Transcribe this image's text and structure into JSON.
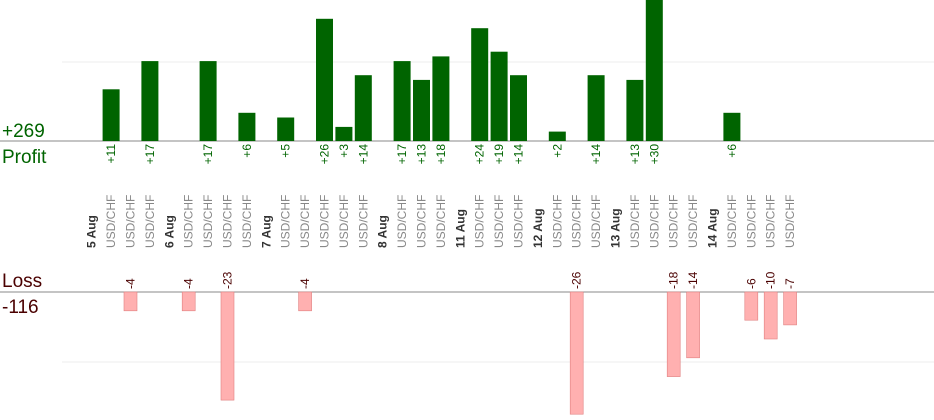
{
  "chart_data": {
    "type": "bar",
    "profit_total": "+269",
    "profit_label": "Profit",
    "loss_label": "Loss",
    "loss_total": "-116",
    "colors": {
      "profit": "#006400",
      "loss": "#ffb0b0",
      "loss_text": "#4a0000",
      "profit_text": "#006400"
    },
    "groups": [
      {
        "date": "5 Aug",
        "trades": [
          {
            "pair": "USD/CHF",
            "value": 11
          },
          {
            "pair": "USD/CHF",
            "value": -4
          },
          {
            "pair": "USD/CHF",
            "value": 17
          }
        ]
      },
      {
        "date": "6 Aug",
        "trades": [
          {
            "pair": "USD/CHF",
            "value": -4
          },
          {
            "pair": "USD/CHF",
            "value": 17
          },
          {
            "pair": "USD/CHF",
            "value": -23
          },
          {
            "pair": "USD/CHF",
            "value": 6
          }
        ]
      },
      {
        "date": "7 Aug",
        "trades": [
          {
            "pair": "USD/CHF",
            "value": 5
          },
          {
            "pair": "USD/CHF",
            "value": -4
          },
          {
            "pair": "USD/CHF",
            "value": 26
          },
          {
            "pair": "USD/CHF",
            "value": 3
          },
          {
            "pair": "USD/CHF",
            "value": 14
          }
        ]
      },
      {
        "date": "8 Aug",
        "trades": [
          {
            "pair": "USD/CHF",
            "value": 17
          },
          {
            "pair": "USD/CHF",
            "value": 13
          },
          {
            "pair": "USD/CHF",
            "value": 18
          }
        ]
      },
      {
        "date": "11 Aug",
        "trades": [
          {
            "pair": "USD/CHF",
            "value": 24
          },
          {
            "pair": "USD/CHF",
            "value": 19
          },
          {
            "pair": "USD/CHF",
            "value": 14
          }
        ]
      },
      {
        "date": "12 Aug",
        "trades": [
          {
            "pair": "USD/CHF",
            "value": 2
          },
          {
            "pair": "USD/CHF",
            "value": -26
          },
          {
            "pair": "USD/CHF",
            "value": 14
          }
        ]
      },
      {
        "date": "13 Aug",
        "trades": [
          {
            "pair": "USD/CHF",
            "value": 13
          },
          {
            "pair": "USD/CHF",
            "value": 30
          },
          {
            "pair": "USD/CHF",
            "value": -18
          },
          {
            "pair": "USD/CHF",
            "value": -14
          }
        ]
      },
      {
        "date": "14 Aug",
        "trades": [
          {
            "pair": "USD/CHF",
            "value": 6
          },
          {
            "pair": "USD/CHF",
            "value": -6
          },
          {
            "pair": "USD/CHF",
            "value": -10
          },
          {
            "pair": "USD/CHF",
            "value": -7
          }
        ]
      }
    ]
  }
}
